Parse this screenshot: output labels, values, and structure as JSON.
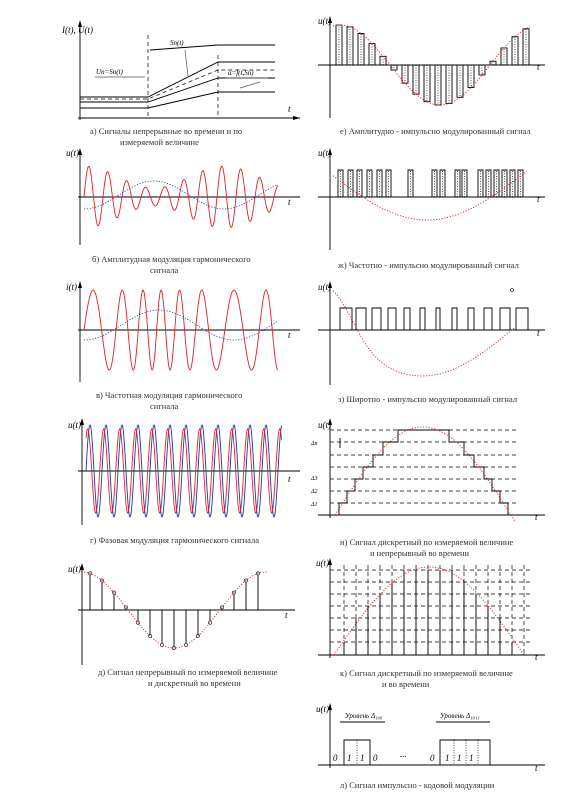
{
  "panels": {
    "a": {
      "ylabel": "I(t), U(t)",
      "xlabel": "t",
      "label_left": "Un=Sn(t)",
      "label_mid": "Sn(t)",
      "label_right": "a=f(t,Sn)",
      "caption_1": "a) Сигналы непрерывные во времени и по",
      "caption_2": "измеряемой величине"
    },
    "b": {
      "ylabel": "u(t)",
      "xlabel": "t",
      "caption_1": "б) Амплитудная модуляция гармонического",
      "caption_2": "сигнала"
    },
    "c": {
      "ylabel": "i(t)",
      "xlabel": "t",
      "caption_1": "в) Частотная модуляция гармонического",
      "caption_2": "сигнала"
    },
    "d": {
      "ylabel": "u(t)",
      "xlabel": "t",
      "caption_1": "г) Фазовая модуляция гармонического сигнала"
    },
    "e": {
      "ylabel": "u(t)",
      "xlabel": "t",
      "caption_1": "д) Сигнал непрерывный по измеряемой величине",
      "caption_2": "и дискретный во времени"
    },
    "f": {
      "ylabel": "u(t)",
      "xlabel": "t",
      "caption_1": "е) Амплитудно - импульсно модулированный сигнал"
    },
    "g": {
      "ylabel": "u(t)",
      "xlabel": "t",
      "caption_1": "ж) Частотно - импульсно модулированный сигнал"
    },
    "h": {
      "ylabel": "u(t)",
      "xlabel": "t",
      "caption_1": "з) Широтно - импульсно модулированный сигнал"
    },
    "i": {
      "ylabel": "u(t)",
      "xlabel": "t",
      "caption_1": "и) Сигнал дискретный по измеряемой величине",
      "caption_2": "и непрерывный во времени"
    },
    "j": {
      "ylabel": "u(t)",
      "xlabel": "t",
      "caption_1": "к) Сигнал дискретный по измеряемой величине",
      "caption_2": "и во времени"
    },
    "k": {
      "ylabel": "u(t)",
      "xlabel": "t",
      "label_left": "Уровень Δ₁₀₀",
      "label_right": "Уровень Δ₁₀₁₁",
      "bits_left": [
        "0",
        "1",
        "1",
        "0"
      ],
      "bits_right": [
        "0",
        "1",
        "1",
        "1"
      ],
      "ellipsis": "...",
      "caption_1": "л) Сигнал импульсно - кодовой модуляции"
    }
  },
  "colors": {
    "carrier": "#dd2222",
    "modulating": "#2233aa",
    "axes": "#000000"
  }
}
